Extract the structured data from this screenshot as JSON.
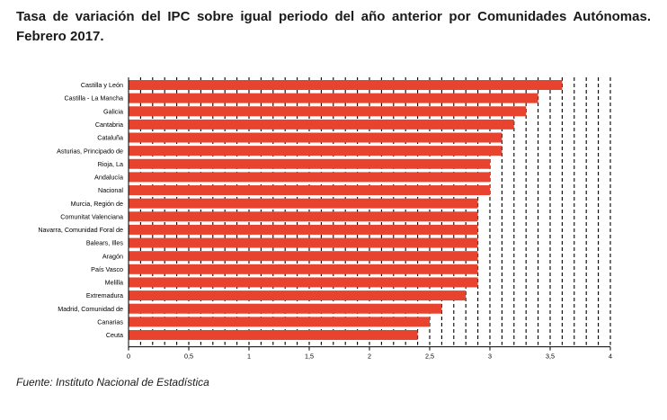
{
  "title": "Tasa de variación del IPC sobre igual periodo del año anterior por Comunidades Autónomas. Febrero 2017.",
  "source": "Fuente: Instituto Nacional de Estadística",
  "chart_data": {
    "type": "bar",
    "orientation": "horizontal",
    "categories": [
      "Castilla y León",
      "Castilla - La Mancha",
      "Galicia",
      "Cantabria",
      "Cataluña",
      "Asturias, Principado de",
      "Rioja, La",
      "Andalucía",
      "Nacional",
      "Murcia, Región de",
      "Comunitat Valenciana",
      "Navarra, Comunidad Foral de",
      "Balears, Illes",
      "Aragón",
      "País Vasco",
      "Melilla",
      "Extremadura",
      "Madrid, Comunidad de",
      "Canarias",
      "Ceuta"
    ],
    "values": [
      3.6,
      3.4,
      3.3,
      3.2,
      3.1,
      3.1,
      3.0,
      3.0,
      3.0,
      2.9,
      2.9,
      2.9,
      2.9,
      2.9,
      2.9,
      2.9,
      2.8,
      2.6,
      2.5,
      2.4
    ],
    "xlim": [
      0,
      4
    ],
    "xticks": [
      "0",
      "0,5",
      "1",
      "1,5",
      "2",
      "2,5",
      "3",
      "3,5",
      "4"
    ],
    "grid": "vertical dashed lines",
    "bar_color": "#e8432f"
  }
}
